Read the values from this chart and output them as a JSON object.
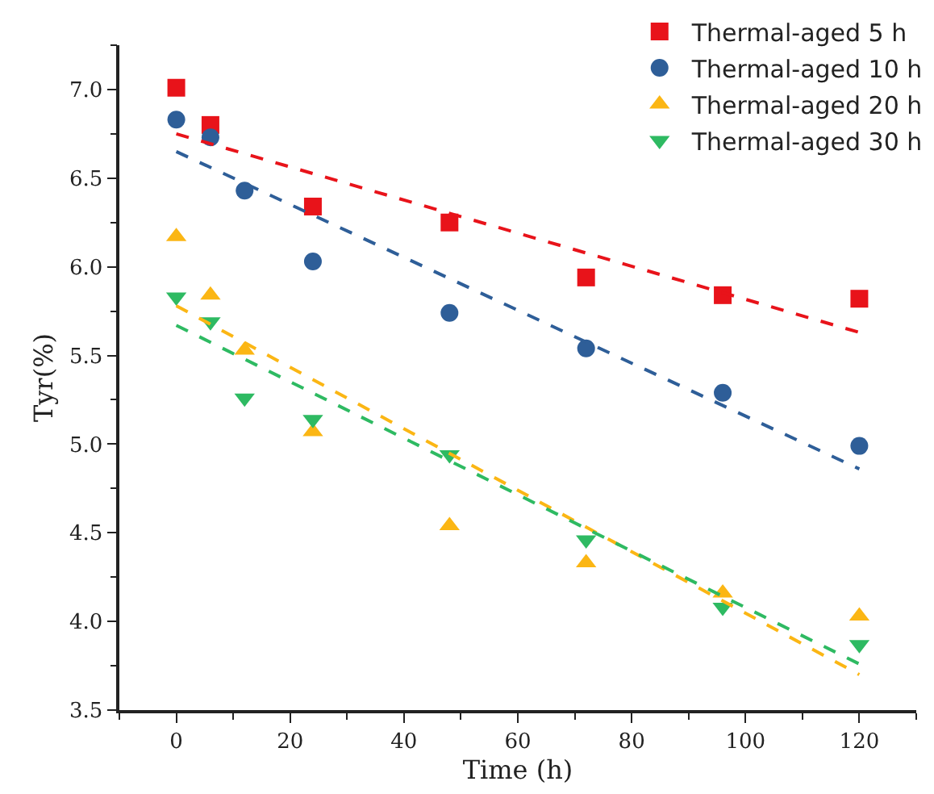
{
  "chart_data": {
    "type": "scatter",
    "xlabel": "Time (h)",
    "ylabel": "Tyr(%)",
    "xlim": [
      -10,
      130
    ],
    "xticks": [
      0,
      20,
      40,
      60,
      80,
      100,
      120
    ],
    "ylim": [
      3.5,
      7.25
    ],
    "yticks": [
      {
        "value": 3.5,
        "label": "3.5"
      },
      {
        "value": 4,
        "label": "4.0"
      },
      {
        "value": 4.5,
        "label": "4.5"
      },
      {
        "value": 5,
        "label": "5.0"
      },
      {
        "value": 5.5,
        "label": "5.5"
      },
      {
        "value": 6,
        "label": "6.0"
      },
      {
        "value": 6.5,
        "label": "6.5"
      },
      {
        "value": 7,
        "label": "7.0"
      }
    ],
    "grid": false,
    "legend": "top right",
    "series": [
      {
        "name": "Thermal-aged 5 h",
        "color": "#e8131a",
        "marker": "square",
        "x": [
          0,
          6,
          12,
          24,
          48,
          72,
          96,
          120
        ],
        "values": [
          7.01,
          6.8,
          null,
          6.34,
          6.25,
          5.94,
          5.84,
          5.82
        ]
      },
      {
        "name": "Thermal-aged 10 h",
        "color": "#2e5e98",
        "marker": "circle",
        "x": [
          0,
          6,
          12,
          24,
          48,
          72,
          96,
          120
        ],
        "values": [
          6.83,
          6.73,
          6.43,
          6.03,
          5.74,
          5.54,
          5.29,
          4.99
        ]
      },
      {
        "name": "Thermal-aged 20 h",
        "color": "#fbb614",
        "marker": "triangle",
        "x": [
          0,
          6,
          12,
          24,
          48,
          72,
          96,
          120
        ],
        "values": [
          6.17,
          5.84,
          5.53,
          5.07,
          4.54,
          4.33,
          4.16,
          4.03
        ]
      },
      {
        "name": "Thermal-aged 30 h",
        "color": "#2eba62",
        "marker": "triangle-down",
        "x": [
          0,
          6,
          12,
          24,
          48,
          72,
          96,
          120
        ],
        "values": [
          5.83,
          5.69,
          5.26,
          5.14,
          4.94,
          4.46,
          4.08,
          3.87
        ]
      },
      {
        "type": "line",
        "color": "#e8131a",
        "marker": "none",
        "line_style": "dashed",
        "x": [
          0,
          120
        ],
        "values": [
          6.75,
          5.63
        ]
      },
      {
        "type": "line",
        "color": "#2e5e98",
        "marker": "none",
        "line_style": "dashed",
        "x": [
          0,
          120
        ],
        "values": [
          6.65,
          4.86
        ]
      },
      {
        "type": "line",
        "color": "#fbb614",
        "marker": "none",
        "line_style": "dashed",
        "x": [
          0,
          120
        ],
        "values": [
          5.78,
          3.7
        ]
      },
      {
        "type": "line",
        "color": "#2eba62",
        "marker": "none",
        "line_style": "dashed",
        "x": [
          0,
          120
        ],
        "values": [
          5.67,
          3.76
        ]
      }
    ]
  }
}
